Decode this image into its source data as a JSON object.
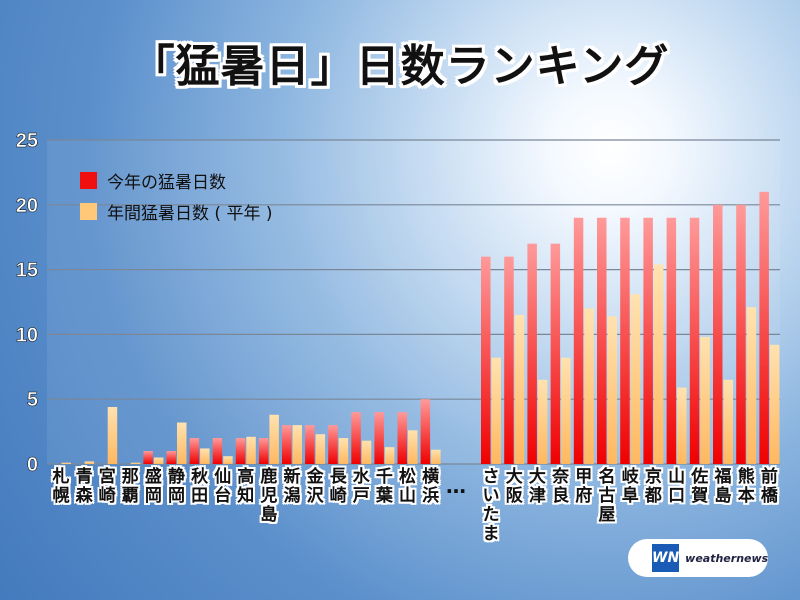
{
  "title": "「猛暑日」日数ランキング",
  "legend": {
    "current": "今年の猛暑日数",
    "average": "年間猛暑日数 ( 平年 )"
  },
  "ellipsis": "…",
  "logo": {
    "mark": "WN",
    "text": "weathernews"
  },
  "colors": {
    "current": "#f01010",
    "average": "#ffc878"
  },
  "chart_data": {
    "type": "bar",
    "title": "「猛暑日」日数ランキング",
    "xlabel": "",
    "ylabel": "",
    "ylim": [
      0,
      25
    ],
    "yticks": [
      "0",
      "5",
      "10",
      "15",
      "20",
      "25"
    ],
    "grid": true,
    "legend_position": "top-left",
    "groups": [
      {
        "categories": [
          "札幌",
          "青森",
          "宮崎",
          "那覇",
          "盛岡",
          "静岡",
          "秋田",
          "仙台",
          "高知",
          "鹿児島",
          "新潟",
          "金沢",
          "長崎",
          "水戸",
          "千葉",
          "松山",
          "横浜"
        ],
        "series": [
          {
            "name": "今年の猛暑日数",
            "values": [
              0,
              0,
              0,
              0,
              1,
              1,
              2,
              2,
              2,
              2,
              3,
              3,
              3,
              4,
              4,
              4,
              5
            ]
          },
          {
            "name": "年間猛暑日数 ( 平年 )",
            "values": [
              0.1,
              0.2,
              4.4,
              0.1,
              0.5,
              3.2,
              1.2,
              0.6,
              2.1,
              3.8,
              3.0,
              2.3,
              2.0,
              1.8,
              1.3,
              2.6,
              1.1
            ]
          }
        ]
      },
      {
        "categories": [
          "さいたま",
          "大阪",
          "大津",
          "奈良",
          "甲府",
          "名古屋",
          "岐阜",
          "京都",
          "山口",
          "佐賀",
          "福島",
          "熊本",
          "前橋"
        ],
        "series": [
          {
            "name": "今年の猛暑日数",
            "values": [
              16,
              16,
              17,
              17,
              19,
              19,
              19,
              19,
              19,
              19,
              20,
              20,
              21
            ]
          },
          {
            "name": "年間猛暑日数 ( 平年 )",
            "values": [
              8.2,
              11.5,
              6.5,
              8.2,
              12.0,
              11.4,
              13.1,
              15.4,
              5.9,
              9.8,
              6.5,
              12.1,
              9.2
            ]
          }
        ]
      }
    ]
  }
}
